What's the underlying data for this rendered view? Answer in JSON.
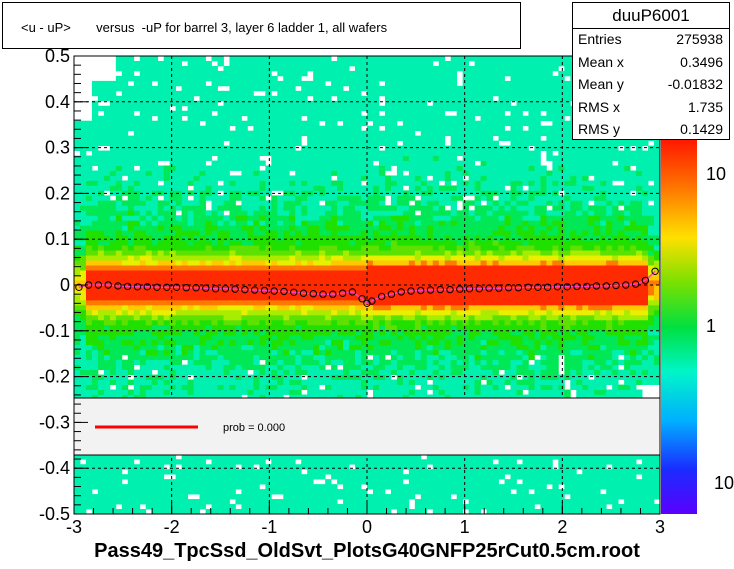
{
  "title": "<u - uP>       versus  -uP for barrel 3, layer 6 ladder 1, all wafers",
  "stats": {
    "name": "duuP6001",
    "rows": [
      {
        "label": "Entries",
        "value": "275938"
      },
      {
        "label": "Mean x",
        "value": "0.3496"
      },
      {
        "label": "Mean y",
        "value": "-0.01832"
      },
      {
        "label": "RMS x",
        "value": "1.735"
      },
      {
        "label": "RMS y",
        "value": "0.1429"
      }
    ]
  },
  "legend": {
    "fit_label": "prob = 0.000",
    "fit_color": "#ff0000"
  },
  "footer": "Pass49_TpcSsd_OldSvt_PlotsG40GNFP25rCut0.5cm.root",
  "colorbar": {
    "scale": "log",
    "tick_labels": [
      "10",
      "1",
      "10"
    ]
  },
  "chart_data": {
    "type": "heatmap",
    "title": "<u - uP>       versus  -uP for barrel 3, layer 6 ladder 1, all wafers",
    "xlabel": "",
    "ylabel": "",
    "xlim": [
      -3,
      3
    ],
    "ylim": [
      -0.5,
      0.5
    ],
    "x_ticks": [
      "-3",
      "-2",
      "-1",
      "0",
      "1",
      "2",
      "3"
    ],
    "y_ticks": [
      "-0.5",
      "-0.4",
      "-0.3",
      "-0.2",
      "-0.1",
      "0",
      "0.1",
      "0.2",
      "0.3",
      "0.4",
      "0.5"
    ],
    "grid": true,
    "profile_series": {
      "name": "profile",
      "x": [
        -2.95,
        -2.85,
        -2.75,
        -2.65,
        -2.55,
        -2.45,
        -2.35,
        -2.25,
        -2.15,
        -2.05,
        -1.95,
        -1.85,
        -1.75,
        -1.65,
        -1.55,
        -1.45,
        -1.35,
        -1.25,
        -1.15,
        -1.05,
        -0.95,
        -0.85,
        -0.75,
        -0.65,
        -0.55,
        -0.45,
        -0.35,
        -0.25,
        -0.15,
        -0.05,
        0.0,
        0.05,
        0.15,
        0.25,
        0.35,
        0.45,
        0.55,
        0.65,
        0.75,
        0.85,
        0.95,
        1.05,
        1.15,
        1.25,
        1.35,
        1.45,
        1.55,
        1.65,
        1.75,
        1.85,
        1.95,
        2.05,
        2.15,
        2.25,
        2.35,
        2.45,
        2.55,
        2.65,
        2.75,
        2.85,
        2.95
      ],
      "y": [
        -0.005,
        0.0,
        0.0,
        0.0,
        -0.002,
        -0.003,
        -0.004,
        -0.004,
        -0.005,
        -0.005,
        -0.005,
        -0.006,
        -0.006,
        -0.007,
        -0.008,
        -0.008,
        -0.009,
        -0.01,
        -0.011,
        -0.012,
        -0.013,
        -0.014,
        -0.016,
        -0.018,
        -0.019,
        -0.02,
        -0.02,
        -0.018,
        -0.015,
        -0.03,
        -0.04,
        -0.035,
        -0.025,
        -0.02,
        -0.015,
        -0.013,
        -0.012,
        -0.011,
        -0.01,
        -0.01,
        -0.009,
        -0.008,
        -0.008,
        -0.007,
        -0.007,
        -0.006,
        -0.006,
        -0.005,
        -0.005,
        -0.005,
        -0.004,
        -0.004,
        -0.003,
        -0.003,
        -0.002,
        -0.002,
        -0.001,
        0.0,
        0.002,
        0.01,
        0.03
      ]
    },
    "fit": {
      "label": "prob = 0.000"
    }
  }
}
